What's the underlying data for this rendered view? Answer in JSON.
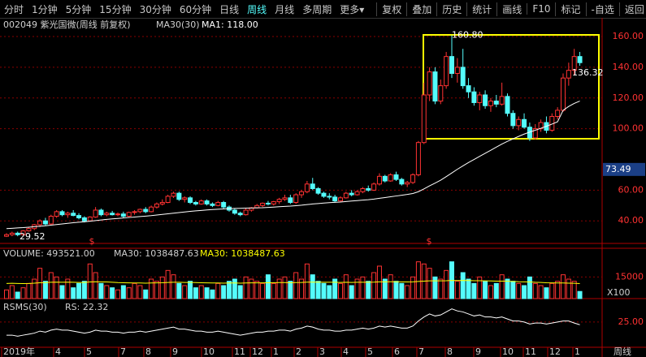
{
  "toolbar": {
    "left": [
      "分时",
      "1分钟",
      "5分钟",
      "15分钟",
      "30分钟",
      "60分钟",
      "日线",
      "周线",
      "月线",
      "多周期",
      "更多▾"
    ],
    "active": "周线",
    "right": [
      "复权",
      "叠加",
      "历史",
      "统计",
      "画线",
      "F10",
      "标记",
      "-自选",
      "返回"
    ]
  },
  "chart_data": [
    {
      "type": "candlestick",
      "title": "002049 紫光国微(周线 前复权)",
      "ma_name": "MA30(30)",
      "ma_value": "MA1: 118.00",
      "up_color": "#ff3232",
      "down_color": "#54fcfc",
      "ma_color": "#ffffff",
      "ylim": [
        25.33,
        162.67
      ],
      "yticks": [
        {
          "value": 40,
          "label": "40.00"
        },
        {
          "value": 60,
          "label": "60.00"
        },
        {
          "value": 100,
          "label": "100.00"
        },
        {
          "value": 120,
          "label": "120.00"
        },
        {
          "value": 140,
          "label": "140.00"
        },
        {
          "value": 160,
          "label": "160.00"
        }
      ],
      "cursor": {
        "value": 73.49,
        "label": "73.49"
      },
      "annotations": [
        {
          "value": 160.8,
          "label": "160.80"
        },
        {
          "value": 136.32,
          "label": "136.32"
        },
        {
          "value": 29.52,
          "label": "29.52"
        }
      ],
      "markers": [
        "$",
        "$"
      ],
      "candles": [
        [
          30,
          32,
          29.52,
          31
        ],
        [
          31,
          33,
          30,
          32
        ],
        [
          32,
          33,
          30,
          31
        ],
        [
          31,
          34,
          30.5,
          33.5
        ],
        [
          33.5,
          36,
          33,
          35
        ],
        [
          35,
          38,
          34,
          37.5
        ],
        [
          37.5,
          41,
          36,
          40
        ],
        [
          40,
          42,
          37,
          38
        ],
        [
          38,
          44,
          37.5,
          43
        ],
        [
          43,
          47,
          42,
          46
        ],
        [
          46,
          47,
          43,
          44
        ],
        [
          44,
          46,
          42,
          45
        ],
        [
          45,
          47,
          43,
          43.5
        ],
        [
          43.5,
          45,
          41,
          42
        ],
        [
          42,
          43,
          39,
          40
        ],
        [
          40,
          43,
          39.5,
          42.5
        ],
        [
          42.5,
          49,
          42,
          47
        ],
        [
          47,
          48,
          43,
          44
        ],
        [
          44,
          46,
          43,
          45
        ],
        [
          45,
          46.5,
          43.5,
          44
        ],
        [
          44,
          45.5,
          43,
          44.5
        ],
        [
          44.5,
          46,
          42,
          43
        ],
        [
          43,
          46,
          42.5,
          45.5
        ],
        [
          45.5,
          47,
          44,
          46
        ],
        [
          46,
          48,
          45,
          47.5
        ],
        [
          47.5,
          49,
          45,
          46
        ],
        [
          46,
          50,
          45.5,
          49
        ],
        [
          49,
          52,
          48,
          51
        ],
        [
          51,
          54,
          50,
          52
        ],
        [
          52,
          57,
          51.5,
          56
        ],
        [
          56,
          59,
          55,
          58
        ],
        [
          58,
          59,
          53,
          54
        ],
        [
          54,
          56,
          52,
          55
        ],
        [
          55,
          56,
          51,
          52
        ],
        [
          52,
          53,
          50,
          51
        ],
        [
          51,
          54,
          50.5,
          53
        ],
        [
          53,
          54,
          50,
          51
        ],
        [
          51,
          52,
          49,
          50
        ],
        [
          50,
          53,
          49.5,
          52
        ],
        [
          52,
          53,
          48,
          49
        ],
        [
          49,
          50,
          46,
          47
        ],
        [
          47,
          48,
          44,
          45
        ],
        [
          45,
          46,
          43,
          44
        ],
        [
          44,
          48,
          43.5,
          47
        ],
        [
          47,
          49,
          46,
          48.5
        ],
        [
          48.5,
          51,
          48,
          50
        ],
        [
          50,
          52,
          49,
          51.5
        ],
        [
          51.5,
          53,
          50,
          51
        ],
        [
          51,
          53,
          50,
          52.5
        ],
        [
          52.5,
          55,
          51,
          54
        ],
        [
          54,
          57,
          53,
          55
        ],
        [
          55,
          57,
          51,
          52
        ],
        [
          52,
          58,
          51,
          57
        ],
        [
          57,
          60,
          55,
          59
        ],
        [
          59,
          66,
          58,
          64
        ],
        [
          64,
          68,
          60,
          61
        ],
        [
          61,
          62,
          57,
          58
        ],
        [
          58,
          59,
          55,
          56
        ],
        [
          56,
          58,
          54,
          55.5
        ],
        [
          55.5,
          57,
          52,
          53
        ],
        [
          53,
          56,
          52,
          55
        ],
        [
          55,
          59,
          54.5,
          58
        ],
        [
          58,
          60,
          56,
          57
        ],
        [
          57,
          60,
          56.5,
          59
        ],
        [
          59,
          62,
          58,
          61
        ],
        [
          61,
          63,
          59,
          60
        ],
        [
          60,
          65,
          59.5,
          64
        ],
        [
          64,
          71,
          63,
          69
        ],
        [
          69,
          70,
          65,
          66
        ],
        [
          66,
          71,
          65.5,
          70
        ],
        [
          70,
          72,
          66,
          67
        ],
        [
          67,
          68,
          63,
          64
        ],
        [
          64,
          66,
          62,
          65
        ],
        [
          65,
          71,
          64,
          70
        ],
        [
          70,
          92,
          69,
          91
        ],
        [
          91,
          130,
          90,
          122
        ],
        [
          122,
          140,
          118,
          137
        ],
        [
          137,
          140,
          116,
          118
        ],
        [
          118,
          132,
          116,
          128
        ],
        [
          128,
          150,
          126,
          147
        ],
        [
          147,
          160.8,
          133,
          136
        ],
        [
          136,
          146,
          130,
          140
        ],
        [
          140,
          152,
          126,
          128
        ],
        [
          128,
          133,
          120,
          124
        ],
        [
          124,
          127,
          115,
          117
        ],
        [
          117,
          124,
          112,
          122
        ],
        [
          122,
          125,
          113,
          115
        ],
        [
          115,
          120,
          111,
          118
        ],
        [
          118,
          122,
          114,
          116
        ],
        [
          116,
          130,
          115,
          121
        ],
        [
          121,
          123,
          108,
          110
        ],
        [
          110,
          112,
          100,
          102
        ],
        [
          102,
          108,
          99,
          106
        ],
        [
          106,
          110,
          100,
          101
        ],
        [
          101,
          104,
          92,
          94
        ],
        [
          94,
          103,
          93,
          100
        ],
        [
          100,
          106,
          98,
          104
        ],
        [
          104,
          108,
          97,
          99
        ],
        [
          99,
          110,
          98,
          108
        ],
        [
          108,
          114,
          106,
          112
        ],
        [
          112,
          136,
          111,
          133
        ],
        [
          133,
          143,
          128,
          138
        ],
        [
          138,
          152,
          135,
          147
        ],
        [
          147,
          150,
          141,
          143
        ]
      ],
      "ma": [
        35,
        35.2,
        35.4,
        35.6,
        35.9,
        36.2,
        36.5,
        36.8,
        37.2,
        37.6,
        38,
        38.4,
        38.8,
        39.1,
        39.4,
        39.8,
        40.2,
        40.6,
        41,
        41.3,
        41.6,
        41.9,
        42.2,
        42.5,
        42.8,
        43.1,
        43.4,
        43.8,
        44.2,
        44.6,
        45,
        45.4,
        45.8,
        46.2,
        46.5,
        46.8,
        47.1,
        47.4,
        47.6,
        47.8,
        48,
        48.1,
        48.2,
        48.3,
        48.4,
        48.5,
        48.6,
        48.8,
        49,
        49.2,
        49.4,
        49.6,
        49.9,
        50.2,
        50.6,
        51,
        51.3,
        51.6,
        51.9,
        52.1,
        52.3,
        52.6,
        52.9,
        53.2,
        53.5,
        53.8,
        54.2,
        54.7,
        55.2,
        55.7,
        56.2,
        56.7,
        57.2,
        57.8,
        59,
        60.8,
        62.8,
        64.6,
        66.5,
        68.8,
        71.2,
        73.6,
        75.8,
        78,
        80,
        82,
        84,
        86,
        88,
        90,
        91.8,
        93.4,
        95,
        96.5,
        97.8,
        99,
        100.3,
        101.6,
        103,
        104.5,
        112,
        114.5,
        116.5,
        118
      ]
    },
    {
      "type": "volume",
      "title": "VOLUME: 493521.00",
      "ma_title": "MA30: 1038487.63",
      "ma_title2": "MA30: 1038487.63",
      "ma_color": "#ffff00",
      "unit": "X100",
      "ylim": [
        0,
        27000
      ],
      "yticks": [
        15000
      ],
      "values": [
        6000,
        9000,
        4500,
        7500,
        10500,
        13500,
        21000,
        12000,
        18000,
        15000,
        9000,
        13500,
        7500,
        10500,
        12000,
        24000,
        18000,
        10500,
        9000,
        7500,
        6000,
        9000,
        7500,
        10500,
        9000,
        6000,
        13500,
        12000,
        15000,
        19500,
        16500,
        10500,
        9000,
        12000,
        7500,
        9000,
        7500,
        6000,
        10500,
        9000,
        12000,
        13500,
        9000,
        15000,
        13500,
        12000,
        10500,
        16500,
        10500,
        13500,
        15000,
        12000,
        18000,
        13500,
        24000,
        16500,
        12000,
        10500,
        9000,
        13500,
        10500,
        16500,
        9000,
        13500,
        15000,
        12000,
        18000,
        22500,
        13500,
        16500,
        12000,
        10500,
        9000,
        15000,
        25500,
        24000,
        21000,
        15000,
        13500,
        19500,
        25500,
        12000,
        18000,
        13500,
        10500,
        15000,
        12000,
        9000,
        10500,
        16500,
        13500,
        12000,
        10500,
        9000,
        15000,
        10500,
        9000,
        7500,
        10500,
        12000,
        16500,
        13500,
        12000,
        4935.21
      ],
      "ma": [
        10500,
        10600,
        10500,
        10400,
        10500,
        10700,
        11000,
        11100,
        11300,
        11400,
        11300,
        11400,
        11300,
        11200,
        11200,
        11500,
        11700,
        11600,
        11500,
        11300,
        11100,
        11000,
        10900,
        10800,
        10800,
        10700,
        10800,
        10900,
        11000,
        11200,
        11300,
        11300,
        11200,
        11200,
        11100,
        11000,
        10900,
        10800,
        10800,
        10700,
        10800,
        10800,
        10700,
        10800,
        10900,
        10900,
        10900,
        11000,
        11000,
        11100,
        11100,
        11000,
        11100,
        11200,
        11400,
        11400,
        11400,
        11300,
        11300,
        11300,
        11200,
        11300,
        11200,
        11300,
        11300,
        11300,
        11400,
        11600,
        11600,
        11700,
        11700,
        11600,
        11500,
        11600,
        11900,
        12100,
        12300,
        12300,
        12300,
        12400,
        12600,
        12500,
        12600,
        12500,
        12400,
        12400,
        12300,
        12200,
        12100,
        12100,
        12000,
        11900,
        11700,
        11600,
        11500,
        11300,
        11200,
        11000,
        10900,
        10800,
        10800,
        10700,
        10600,
        10384.88
      ]
    },
    {
      "type": "line",
      "title": "RSMS(30)",
      "value_title": "RS: 22.32",
      "color": "#ffffff",
      "ylim": [
        0,
        45
      ],
      "yticks": [
        {
          "value": 25,
          "label": "25.00"
        }
      ],
      "values": [
        12,
        12,
        11,
        12,
        13,
        14,
        16,
        15,
        17,
        18,
        17,
        17,
        16,
        15,
        14,
        15,
        17,
        16,
        16,
        15,
        15,
        14,
        15,
        15,
        16,
        15,
        16,
        17,
        18,
        19,
        20,
        18,
        18,
        17,
        16,
        16,
        15,
        15,
        16,
        15,
        14,
        13,
        12,
        13,
        14,
        15,
        15,
        16,
        16,
        17,
        17,
        16,
        18,
        19,
        21,
        20,
        18,
        17,
        17,
        16,
        16,
        17,
        17,
        18,
        19,
        18,
        19,
        21,
        20,
        21,
        20,
        19,
        19,
        21,
        26,
        30,
        33,
        31,
        32,
        35,
        38,
        36,
        35,
        33,
        31,
        32,
        30,
        30,
        29,
        30,
        28,
        26,
        26,
        25,
        23,
        24,
        24,
        23,
        24,
        25,
        26,
        26,
        24,
        22.32
      ]
    }
  ],
  "x_labels": [
    "2019年",
    "4",
    "5",
    "7",
    "8",
    "9",
    "10",
    "11",
    "12",
    "1",
    "2",
    "3",
    "4",
    "5",
    "6",
    "7",
    "8",
    "9",
    "10",
    "11",
    "12",
    "1"
  ],
  "period": "周线"
}
